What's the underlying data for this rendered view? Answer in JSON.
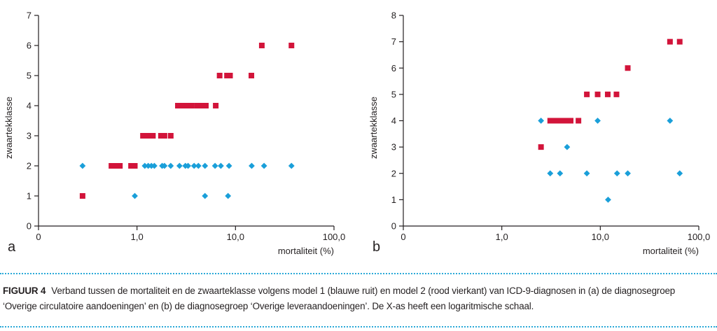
{
  "chart_data": [
    {
      "type": "scatter",
      "panel_label": "a",
      "xlabel": "mortaliteit (%)",
      "ylabel": "zwaartekklasse",
      "x_scale": "log",
      "x_ticks": [
        {
          "value": 0.1,
          "label": "0"
        },
        {
          "value": 1,
          "label": "1,0"
        },
        {
          "value": 10,
          "label": "10,0"
        },
        {
          "value": 100,
          "label": "100,0"
        }
      ],
      "xlim": [
        0.1,
        100
      ],
      "ylim": [
        0,
        7
      ],
      "y_ticks": [
        0,
        1,
        2,
        3,
        4,
        5,
        6,
        7
      ],
      "grid": false,
      "series": [
        {
          "marker": "diamond",
          "color": "#1a9fd9",
          "points": [
            [
              0.28,
              2
            ],
            [
              0.95,
              1
            ],
            [
              1.2,
              2
            ],
            [
              1.3,
              2
            ],
            [
              1.4,
              2
            ],
            [
              1.5,
              2
            ],
            [
              1.8,
              2
            ],
            [
              1.9,
              2
            ],
            [
              2.2,
              2
            ],
            [
              2.7,
              2
            ],
            [
              3.1,
              2
            ],
            [
              3.3,
              2
            ],
            [
              3.8,
              2
            ],
            [
              4.2,
              2
            ],
            [
              4.9,
              2
            ],
            [
              4.9,
              1
            ],
            [
              6.2,
              2
            ],
            [
              7.1,
              2
            ],
            [
              8.6,
              2
            ],
            [
              8.4,
              1
            ],
            [
              14.6,
              2
            ],
            [
              19.5,
              2
            ],
            [
              37,
              2
            ]
          ]
        },
        {
          "marker": "square",
          "color": "#d2143a",
          "points": [
            [
              0.28,
              1
            ],
            [
              0.55,
              2
            ],
            [
              0.6,
              2
            ],
            [
              0.67,
              2
            ],
            [
              0.87,
              2
            ],
            [
              0.95,
              2
            ],
            [
              1.15,
              3
            ],
            [
              1.3,
              3
            ],
            [
              1.45,
              3
            ],
            [
              1.75,
              3
            ],
            [
              1.9,
              3
            ],
            [
              2.2,
              3
            ],
            [
              2.6,
              4
            ],
            [
              2.9,
              4
            ],
            [
              3.2,
              4
            ],
            [
              3.6,
              4
            ],
            [
              4.1,
              4
            ],
            [
              4.5,
              4
            ],
            [
              5.0,
              4
            ],
            [
              6.3,
              4
            ],
            [
              6.9,
              5
            ],
            [
              8.2,
              5
            ],
            [
              8.8,
              5
            ],
            [
              14.5,
              5
            ],
            [
              18.5,
              6
            ],
            [
              37,
              6
            ]
          ]
        }
      ]
    },
    {
      "type": "scatter",
      "panel_label": "b",
      "xlabel": "mortaliteit (%)",
      "ylabel": "zwaartekklasse",
      "x_scale": "log",
      "x_ticks": [
        {
          "value": 0.1,
          "label": "0"
        },
        {
          "value": 1,
          "label": "1,0"
        },
        {
          "value": 10,
          "label": "10,0"
        },
        {
          "value": 100,
          "label": "100,0"
        }
      ],
      "xlim": [
        0.1,
        100
      ],
      "ylim": [
        0,
        8
      ],
      "y_ticks": [
        0,
        1,
        2,
        3,
        4,
        5,
        6,
        7,
        8
      ],
      "grid": false,
      "series": [
        {
          "marker": "diamond",
          "color": "#1a9fd9",
          "points": [
            [
              2.5,
              4
            ],
            [
              3.1,
              2
            ],
            [
              3.9,
              2
            ],
            [
              4.6,
              3
            ],
            [
              7.3,
              2
            ],
            [
              9.4,
              4
            ],
            [
              12.0,
              1
            ],
            [
              14.8,
              2
            ],
            [
              19.0,
              2
            ],
            [
              51,
              4
            ],
            [
              64,
              2
            ]
          ]
        },
        {
          "marker": "square",
          "color": "#d2143a",
          "points": [
            [
              2.5,
              3
            ],
            [
              3.1,
              4
            ],
            [
              3.4,
              4
            ],
            [
              3.7,
              4
            ],
            [
              4.0,
              4
            ],
            [
              4.3,
              4
            ],
            [
              4.6,
              4
            ],
            [
              5.0,
              4
            ],
            [
              6.0,
              4
            ],
            [
              7.3,
              5
            ],
            [
              9.4,
              5
            ],
            [
              11.9,
              5
            ],
            [
              14.6,
              5
            ],
            [
              19.0,
              6
            ],
            [
              51,
              7
            ],
            [
              64,
              7
            ]
          ]
        }
      ]
    }
  ],
  "caption": {
    "label": "FIGUUR 4",
    "text": "Verband tussen de mortaliteit en de zwaarteklasse volgens model 1 (blauwe ruit) en model 2 (rood vierkant) van ICD-9-diagnosen in (a) de diagnosegroep ‘Overige circulatoire aandoeningen’ en (b) de diagnosegroep ‘Overige leveraandoeningen’. De X-as heeft een logaritmische schaal."
  }
}
